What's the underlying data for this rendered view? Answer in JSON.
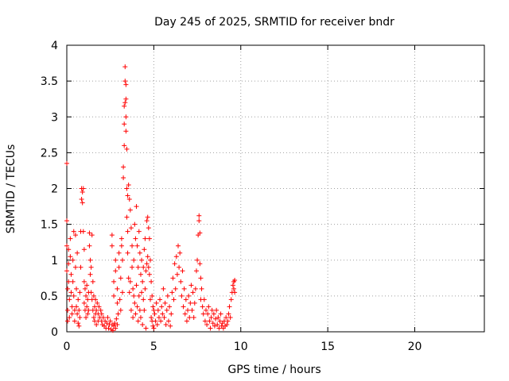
{
  "colors": {
    "background": "#ffffff",
    "axis": "#000000",
    "grid": "#a0a0a0",
    "series": "#ff0000"
  },
  "chart_data": {
    "type": "scatter",
    "title": "Day 245 of 2025, SRMTID for receiver bndr",
    "xlabel": "GPS time / hours",
    "ylabel": "SRMTID / TECUs",
    "xlim": [
      0,
      24
    ],
    "ylim": [
      0,
      4
    ],
    "xticks": [
      0,
      5,
      10,
      15,
      20
    ],
    "yticks": [
      0,
      0.5,
      1,
      1.5,
      2,
      2.5,
      3,
      3.5,
      4
    ],
    "xtick_labels": [
      "0",
      "5",
      "10",
      "15",
      "20"
    ],
    "ytick_labels": [
      "0",
      "0.5",
      "1",
      "1.5",
      "2",
      "2.5",
      "3",
      "3.5",
      "4"
    ],
    "grid": true,
    "marker": "plus",
    "series": [
      {
        "name": "SRMTID",
        "color": "#ff0000",
        "points": [
          [
            0.0,
            2.35
          ],
          [
            0.0,
            1.55
          ],
          [
            0.0,
            1.2
          ],
          [
            0.0,
            0.85
          ],
          [
            0.05,
            0.6
          ],
          [
            0.05,
            0.3
          ],
          [
            0.05,
            0.15
          ],
          [
            0.1,
            1.15
          ],
          [
            0.1,
            0.95
          ],
          [
            0.1,
            0.7
          ],
          [
            0.15,
            0.45
          ],
          [
            0.15,
            0.2
          ],
          [
            0.2,
            1.3
          ],
          [
            0.2,
            1.05
          ],
          [
            0.25,
            0.8
          ],
          [
            0.25,
            0.55
          ],
          [
            0.3,
            0.35
          ],
          [
            0.3,
            0.25
          ],
          [
            0.35,
            1.0
          ],
          [
            0.35,
            0.7
          ],
          [
            0.4,
            1.4
          ],
          [
            0.4,
            0.5
          ],
          [
            0.45,
            0.3
          ],
          [
            0.45,
            0.15
          ],
          [
            0.5,
            1.35
          ],
          [
            0.5,
            0.9
          ],
          [
            0.55,
            0.6
          ],
          [
            0.55,
            0.35
          ],
          [
            0.6,
            1.1
          ],
          [
            0.6,
            0.25
          ],
          [
            0.65,
            0.45
          ],
          [
            0.65,
            0.12
          ],
          [
            0.7,
            0.3
          ],
          [
            0.7,
            0.08
          ],
          [
            0.75,
            0.2
          ],
          [
            0.75,
            0.55
          ],
          [
            0.8,
            1.4
          ],
          [
            0.8,
            0.9
          ],
          [
            0.85,
            2.0
          ],
          [
            0.85,
            1.85
          ],
          [
            0.9,
            1.95
          ],
          [
            0.9,
            1.8
          ],
          [
            0.95,
            2.0
          ],
          [
            0.95,
            1.4
          ],
          [
            1.0,
            1.15
          ],
          [
            1.0,
            0.7
          ],
          [
            1.0,
            0.4
          ],
          [
            1.05,
            0.6
          ],
          [
            1.05,
            0.3
          ],
          [
            1.1,
            0.5
          ],
          [
            1.1,
            0.2
          ],
          [
            1.15,
            0.65
          ],
          [
            1.15,
            0.35
          ],
          [
            1.2,
            0.45
          ],
          [
            1.2,
            0.25
          ],
          [
            1.25,
            0.55
          ],
          [
            1.25,
            0.3
          ],
          [
            1.3,
            1.38
          ],
          [
            1.3,
            1.2
          ],
          [
            1.35,
            1.0
          ],
          [
            1.35,
            0.8
          ],
          [
            1.4,
            0.9
          ],
          [
            1.4,
            0.55
          ],
          [
            1.45,
            1.35
          ],
          [
            1.45,
            0.45
          ],
          [
            1.5,
            0.7
          ],
          [
            1.5,
            0.3
          ],
          [
            1.55,
            0.5
          ],
          [
            1.55,
            0.2
          ],
          [
            1.6,
            0.35
          ],
          [
            1.6,
            0.15
          ],
          [
            1.65,
            0.45
          ],
          [
            1.65,
            0.25
          ],
          [
            1.7,
            0.3
          ],
          [
            1.7,
            0.1
          ],
          [
            1.75,
            0.4
          ],
          [
            1.8,
            0.25
          ],
          [
            1.8,
            0.15
          ],
          [
            1.85,
            0.35
          ],
          [
            1.9,
            0.2
          ],
          [
            1.95,
            0.3
          ],
          [
            2.0,
            0.15
          ],
          [
            2.0,
            0.25
          ],
          [
            2.05,
            0.1
          ],
          [
            2.1,
            0.2
          ],
          [
            2.15,
            0.08
          ],
          [
            2.2,
            0.15
          ],
          [
            2.25,
            0.05
          ],
          [
            2.3,
            0.12
          ],
          [
            2.35,
            0.2
          ],
          [
            2.4,
            0.05
          ],
          [
            2.45,
            0.1
          ],
          [
            2.5,
            0.15
          ],
          [
            2.55,
            0.03
          ],
          [
            2.6,
            0.1
          ],
          [
            2.65,
            0.02
          ],
          [
            2.7,
            0.08
          ],
          [
            2.75,
            0.12
          ],
          [
            2.8,
            0.05
          ],
          [
            2.85,
            0.18
          ],
          [
            2.9,
            0.1
          ],
          [
            2.95,
            0.25
          ],
          [
            2.6,
            1.35
          ],
          [
            2.6,
            1.2
          ],
          [
            2.7,
            0.7
          ],
          [
            2.7,
            0.5
          ],
          [
            2.8,
            1.0
          ],
          [
            2.8,
            0.85
          ],
          [
            2.9,
            0.6
          ],
          [
            2.9,
            0.4
          ],
          [
            3.0,
            1.1
          ],
          [
            3.0,
            0.9
          ],
          [
            3.05,
            0.45
          ],
          [
            3.1,
            0.75
          ],
          [
            3.1,
            0.3
          ],
          [
            3.15,
            1.3
          ],
          [
            3.15,
            1.2
          ],
          [
            3.2,
            1.0
          ],
          [
            3.2,
            0.55
          ],
          [
            3.25,
            2.3
          ],
          [
            3.25,
            2.15
          ],
          [
            3.3,
            3.15
          ],
          [
            3.3,
            2.9
          ],
          [
            3.3,
            2.6
          ],
          [
            3.35,
            3.7
          ],
          [
            3.35,
            3.5
          ],
          [
            3.35,
            3.2
          ],
          [
            3.4,
            3.45
          ],
          [
            3.4,
            3.25
          ],
          [
            3.4,
            3.0
          ],
          [
            3.4,
            2.8
          ],
          [
            3.45,
            2.55
          ],
          [
            3.45,
            2.0
          ],
          [
            3.45,
            1.6
          ],
          [
            3.5,
            1.9
          ],
          [
            3.5,
            1.4
          ],
          [
            3.5,
            1.1
          ],
          [
            3.55,
            2.05
          ],
          [
            3.55,
            0.75
          ],
          [
            3.6,
            1.85
          ],
          [
            3.6,
            0.55
          ],
          [
            3.65,
            1.7
          ],
          [
            3.65,
            0.7
          ],
          [
            3.7,
            1.45
          ],
          [
            3.7,
            0.3
          ],
          [
            3.75,
            1.2
          ],
          [
            3.75,
            0.9
          ],
          [
            3.8,
            0.6
          ],
          [
            3.8,
            0.2
          ],
          [
            3.85,
            1.0
          ],
          [
            3.85,
            0.5
          ],
          [
            3.9,
            1.5
          ],
          [
            3.9,
            0.4
          ],
          [
            3.95,
            1.3
          ],
          [
            3.95,
            0.25
          ],
          [
            4.0,
            1.75
          ],
          [
            4.0,
            0.65
          ],
          [
            4.05,
            1.2
          ],
          [
            4.05,
            0.35
          ],
          [
            4.1,
            0.9
          ],
          [
            4.1,
            0.15
          ],
          [
            4.15,
            1.4
          ],
          [
            4.15,
            0.5
          ],
          [
            4.2,
            1.1
          ],
          [
            4.2,
            0.3
          ],
          [
            4.25,
            0.8
          ],
          [
            4.25,
            0.2
          ],
          [
            4.3,
            1.0
          ],
          [
            4.3,
            0.55
          ],
          [
            4.35,
            0.7
          ],
          [
            4.35,
            0.1
          ],
          [
            4.4,
            0.9
          ],
          [
            4.4,
            0.45
          ],
          [
            4.45,
            1.15
          ],
          [
            4.45,
            0.3
          ],
          [
            4.5,
            1.3
          ],
          [
            4.5,
            0.6
          ],
          [
            4.55,
            0.85
          ],
          [
            4.55,
            0.05
          ],
          [
            4.6,
            1.55
          ],
          [
            4.6,
            0.95
          ],
          [
            4.65,
            1.6
          ],
          [
            4.65,
            1.05
          ],
          [
            4.7,
            1.45
          ],
          [
            4.7,
            0.9
          ],
          [
            4.75,
            1.3
          ],
          [
            4.75,
            0.8
          ],
          [
            4.8,
            1.0
          ],
          [
            4.8,
            0.45
          ],
          [
            4.85,
            0.7
          ],
          [
            4.85,
            0.2
          ],
          [
            4.9,
            0.5
          ],
          [
            4.9,
            0.15
          ],
          [
            4.95,
            0.35
          ],
          [
            4.95,
            0.08
          ],
          [
            5.0,
            0.3
          ],
          [
            5.0,
            0.05
          ],
          [
            5.05,
            0.25
          ],
          [
            5.1,
            0.15
          ],
          [
            5.15,
            0.4
          ],
          [
            5.2,
            0.1
          ],
          [
            5.25,
            0.3
          ],
          [
            5.3,
            0.2
          ],
          [
            5.35,
            0.45
          ],
          [
            5.4,
            0.15
          ],
          [
            5.45,
            0.35
          ],
          [
            5.5,
            0.25
          ],
          [
            5.55,
            0.6
          ],
          [
            5.6,
            0.2
          ],
          [
            5.65,
            0.4
          ],
          [
            5.7,
            0.1
          ],
          [
            5.75,
            0.3
          ],
          [
            5.8,
            0.5
          ],
          [
            5.85,
            0.15
          ],
          [
            5.9,
            0.35
          ],
          [
            5.95,
            0.08
          ],
          [
            6.0,
            0.25
          ],
          [
            6.05,
            0.55
          ],
          [
            6.1,
            0.75
          ],
          [
            6.15,
            0.45
          ],
          [
            6.2,
            0.95
          ],
          [
            6.25,
            0.6
          ],
          [
            6.3,
            1.05
          ],
          [
            6.35,
            0.8
          ],
          [
            6.4,
            1.2
          ],
          [
            6.45,
            0.9
          ],
          [
            6.5,
            1.1
          ],
          [
            6.55,
            0.7
          ],
          [
            6.6,
            0.5
          ],
          [
            6.65,
            0.85
          ],
          [
            6.7,
            0.35
          ],
          [
            6.75,
            0.6
          ],
          [
            6.8,
            0.25
          ],
          [
            6.85,
            0.45
          ],
          [
            6.9,
            0.15
          ],
          [
            6.95,
            0.3
          ],
          [
            7.0,
            0.5
          ],
          [
            7.05,
            0.2
          ],
          [
            7.1,
            0.4
          ],
          [
            7.15,
            0.65
          ],
          [
            7.2,
            0.3
          ],
          [
            7.25,
            0.55
          ],
          [
            7.3,
            0.2
          ],
          [
            7.35,
            0.4
          ],
          [
            7.4,
            0.6
          ],
          [
            7.45,
            0.85
          ],
          [
            7.5,
            1.0
          ],
          [
            7.55,
            1.35
          ],
          [
            7.6,
            1.62
          ],
          [
            7.6,
            1.55
          ],
          [
            7.65,
            1.38
          ],
          [
            7.65,
            0.95
          ],
          [
            7.7,
            0.75
          ],
          [
            7.7,
            0.45
          ],
          [
            7.75,
            0.6
          ],
          [
            7.8,
            0.35
          ],
          [
            7.85,
            0.25
          ],
          [
            7.9,
            0.45
          ],
          [
            7.95,
            0.15
          ],
          [
            8.0,
            0.3
          ],
          [
            8.05,
            0.1
          ],
          [
            8.1,
            0.25
          ],
          [
            8.15,
            0.35
          ],
          [
            8.2,
            0.15
          ],
          [
            8.25,
            0.05
          ],
          [
            8.3,
            0.2
          ],
          [
            8.35,
            0.3
          ],
          [
            8.4,
            0.12
          ],
          [
            8.45,
            0.25
          ],
          [
            8.5,
            0.08
          ],
          [
            8.55,
            0.18
          ],
          [
            8.6,
            0.3
          ],
          [
            8.65,
            0.1
          ],
          [
            8.7,
            0.2
          ],
          [
            8.75,
            0.05
          ],
          [
            8.8,
            0.15
          ],
          [
            8.85,
            0.25
          ],
          [
            8.9,
            0.08
          ],
          [
            8.95,
            0.12
          ],
          [
            9.0,
            0.05
          ],
          [
            9.05,
            0.15
          ],
          [
            9.1,
            0.08
          ],
          [
            9.15,
            0.2
          ],
          [
            9.2,
            0.1
          ],
          [
            9.25,
            0.15
          ],
          [
            9.3,
            0.25
          ],
          [
            9.35,
            0.35
          ],
          [
            9.4,
            0.2
          ],
          [
            9.45,
            0.45
          ],
          [
            9.5,
            0.55
          ],
          [
            9.55,
            0.65
          ],
          [
            9.6,
            0.7
          ],
          [
            9.6,
            0.6
          ],
          [
            9.65,
            0.72
          ],
          [
            9.65,
            0.55
          ]
        ]
      }
    ]
  }
}
